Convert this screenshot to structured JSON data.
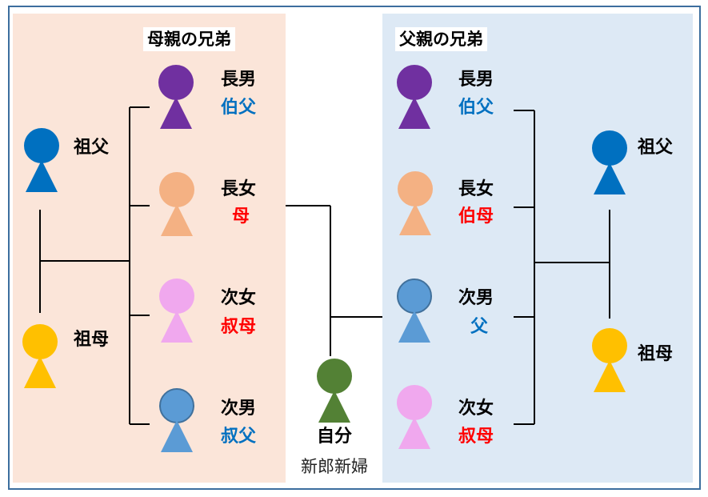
{
  "colors": {
    "frame": "#3c6e9e",
    "mother_panel_bg": "#fbe5d9",
    "father_panel_bg": "#dde9f5",
    "purple": "#7030a0",
    "blue": "#0070c0",
    "light_blue": "#5b9bd5",
    "salmon": "#f4b183",
    "pink": "#f0a8ee",
    "yellow": "#ffc000",
    "green": "#538135",
    "red_text": "#ff0000",
    "blue_text": "#0070c0"
  },
  "mother_side": {
    "title": "母親の兄弟",
    "grandfather": {
      "name": "祖父",
      "icon": "grandfather-icon"
    },
    "grandmother": {
      "name": "祖母",
      "icon": "grandmother-icon"
    },
    "siblings": [
      {
        "order": "長男",
        "relation": "伯父"
      },
      {
        "order": "長女",
        "relation": "母"
      },
      {
        "order": "次女",
        "relation": "叔母"
      },
      {
        "order": "次男",
        "relation": "叔父"
      }
    ]
  },
  "father_side": {
    "title": "父親の兄弟",
    "grandfather": {
      "name": "祖父",
      "icon": "grandfather-icon"
    },
    "grandmother": {
      "name": "祖母",
      "icon": "grandmother-icon"
    },
    "siblings": [
      {
        "order": "長男",
        "relation": "伯父"
      },
      {
        "order": "長女",
        "relation": "伯母"
      },
      {
        "order": "次男",
        "relation": "父"
      },
      {
        "order": "次女",
        "relation": "叔母"
      }
    ]
  },
  "self": {
    "name": "自分",
    "subtitle": "新郎新婦"
  }
}
